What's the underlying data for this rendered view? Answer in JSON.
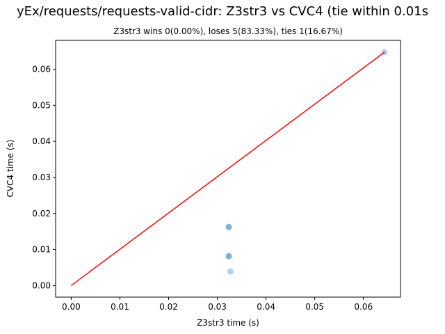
{
  "chart_data": {
    "type": "scatter",
    "title": "yEx/requests/requests-valid-cidr: Z3str3 vs CVC4 (tie within 0.01s",
    "subtitle": "Z3str3 wins 0(0.00%), loses 5(83.33%), ties 1(16.67%)",
    "xlabel": "Z3str3 time (s)",
    "ylabel": "CVC4 time (s)",
    "xlim": [
      -0.0032,
      0.0676
    ],
    "ylim": [
      -0.0032,
      0.068
    ],
    "xticks": [
      0.0,
      0.01,
      0.02,
      0.03,
      0.04,
      0.05,
      0.06
    ],
    "yticks": [
      0.0,
      0.01,
      0.02,
      0.03,
      0.04,
      0.05,
      0.06
    ],
    "xtick_labels": [
      "0.00",
      "0.01",
      "0.02",
      "0.03",
      "0.04",
      "0.05",
      "0.06"
    ],
    "ytick_labels": [
      "0.00",
      "0.01",
      "0.02",
      "0.03",
      "0.04",
      "0.05",
      "0.06"
    ],
    "points": [
      {
        "x": 0.0323,
        "y": 0.0163
      },
      {
        "x": 0.0324,
        "y": 0.0162
      },
      {
        "x": 0.0323,
        "y": 0.0082
      },
      {
        "x": 0.0324,
        "y": 0.0081
      },
      {
        "x": 0.0327,
        "y": 0.0039
      },
      {
        "x": 0.0643,
        "y": 0.0647
      }
    ],
    "reference_line": {
      "x": [
        0.0,
        0.0643
      ],
      "y": [
        0.0,
        0.0647
      ]
    },
    "grid": false,
    "colors": {
      "points": "#1f77b4",
      "line": "#ff0000",
      "axes": "#000000"
    }
  }
}
